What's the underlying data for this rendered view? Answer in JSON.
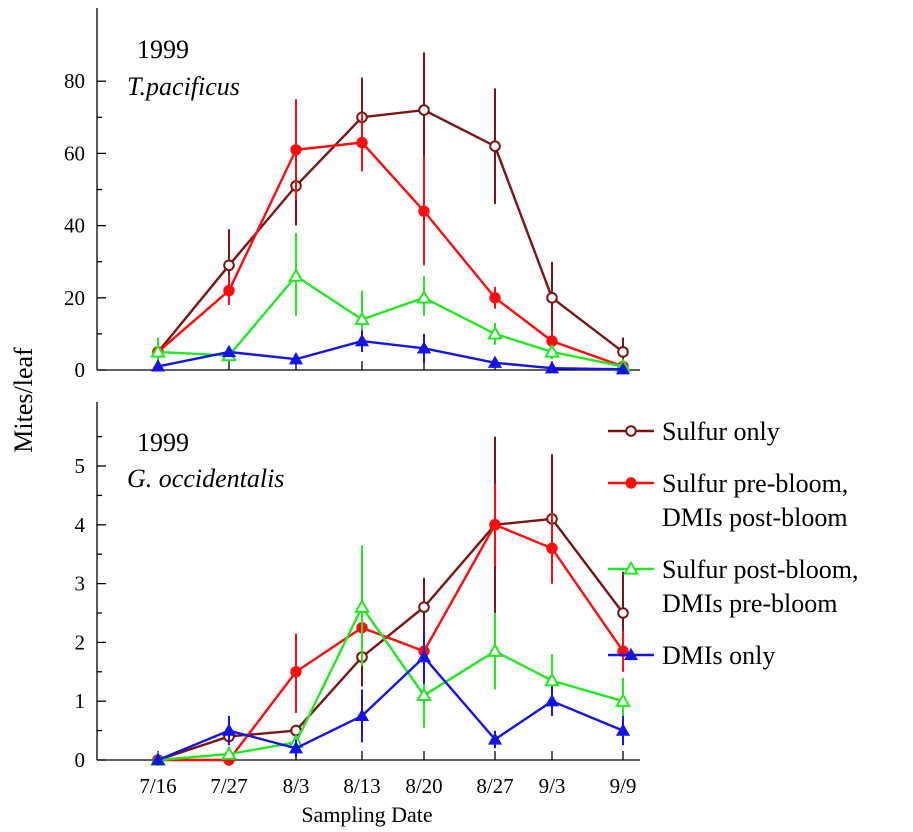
{
  "y_axis_label": "Mites/leaf",
  "x_axis_label": "Sampling Date",
  "legend": [
    {
      "label_lines": [
        "Sulfur only"
      ],
      "color": "#7a1512",
      "marker": "open-circle"
    },
    {
      "label_lines": [
        "Sulfur pre-bloom,",
        "DMIs post-bloom"
      ],
      "color": "#ff0d0d",
      "marker": "filled-circle"
    },
    {
      "label_lines": [
        "Sulfur post-bloom,",
        "DMIs pre-bloom"
      ],
      "color": "#22e822",
      "marker": "open-triangle"
    },
    {
      "label_lines": [
        "DMIs only"
      ],
      "color": "#1414e6",
      "marker": "filled-triangle"
    }
  ],
  "chart_data": [
    {
      "type": "line",
      "title": "1999",
      "subtitle": "T.pacificus",
      "xlabel": "",
      "ylabel": "Mites/leaf",
      "ylim": [
        0,
        90
      ],
      "yticks": [
        0,
        20,
        40,
        60,
        80
      ],
      "x": [
        "7/16",
        "7/27",
        "8/3",
        "8/13",
        "8/20",
        "8/27",
        "9/3",
        "9/9"
      ],
      "series": [
        {
          "name": "Sulfur only",
          "color": "#7a1512",
          "marker": "open-circle",
          "values": [
            5,
            29,
            51,
            70,
            72,
            62,
            20,
            5
          ],
          "err_low": [
            1,
            19,
            40,
            60,
            45,
            46,
            8,
            2
          ],
          "err_high": [
            7,
            39,
            62,
            81,
            88,
            78,
            30,
            9
          ]
        },
        {
          "name": "Sulfur pre-bloom, DMIs post-bloom",
          "color": "#ff0d0d",
          "marker": "filled-circle",
          "values": [
            5,
            22,
            61,
            63,
            44,
            20,
            8,
            1
          ],
          "err_low": [
            3,
            18,
            47,
            55,
            29,
            17,
            5,
            0
          ],
          "err_high": [
            7,
            26,
            75,
            71,
            59,
            23,
            11,
            2
          ]
        },
        {
          "name": "Sulfur post-bloom, DMIs pre-bloom",
          "color": "#22e822",
          "marker": "open-triangle",
          "values": [
            5,
            4,
            26,
            14,
            20,
            10,
            5,
            1
          ],
          "err_low": [
            2,
            3,
            15,
            7,
            15,
            7,
            3,
            0
          ],
          "err_high": [
            9,
            5,
            38,
            22,
            26,
            13,
            7,
            2
          ]
        },
        {
          "name": "DMIs only",
          "color": "#1414e6",
          "marker": "filled-triangle",
          "values": [
            1,
            5,
            3,
            8,
            6,
            2,
            0.5,
            0.2
          ],
          "err_low": [
            0,
            4,
            2,
            5,
            2,
            1,
            0,
            0
          ],
          "err_high": [
            2,
            6,
            4,
            11,
            10,
            3,
            1,
            0.5
          ]
        }
      ]
    },
    {
      "type": "line",
      "title": "1999",
      "subtitle": "G. occidentalis",
      "xlabel": "Sampling Date",
      "ylabel": "Mites/leaf",
      "ylim": [
        0,
        6
      ],
      "yticks": [
        0,
        1,
        2,
        3,
        4,
        5
      ],
      "x": [
        "7/16",
        "7/27",
        "8/3",
        "8/13",
        "8/20",
        "8/27",
        "9/3",
        "9/9"
      ],
      "series": [
        {
          "name": "Sulfur only",
          "color": "#7a1512",
          "marker": "open-circle",
          "values": [
            0,
            0.4,
            0.5,
            1.75,
            2.6,
            4.0,
            4.1,
            2.5
          ],
          "err_low": [
            0,
            0.3,
            0.4,
            1.25,
            2.1,
            2.5,
            3.0,
            1.8
          ],
          "err_high": [
            0.05,
            0.5,
            0.6,
            2.25,
            3.1,
            5.5,
            5.2,
            3.2
          ]
        },
        {
          "name": "Sulfur pre-bloom, DMIs post-bloom",
          "color": "#ff0d0d",
          "marker": "filled-circle",
          "values": [
            0,
            0,
            1.5,
            2.25,
            1.85,
            4.0,
            3.6,
            1.85
          ],
          "err_low": [
            0,
            0,
            0.8,
            2.1,
            1.7,
            3.3,
            3.0,
            1.5
          ],
          "err_high": [
            0.05,
            0.05,
            2.15,
            2.4,
            2.0,
            4.7,
            4.2,
            2.2
          ]
        },
        {
          "name": "Sulfur post-bloom, DMIs pre-bloom",
          "color": "#22e822",
          "marker": "open-triangle",
          "values": [
            0,
            0.1,
            0.3,
            2.6,
            1.1,
            1.85,
            1.35,
            1.0
          ],
          "err_low": [
            0,
            0.05,
            0.2,
            1.6,
            0.55,
            1.2,
            0.9,
            0.55
          ],
          "err_high": [
            0.05,
            0.15,
            0.4,
            3.65,
            1.65,
            2.5,
            1.8,
            1.4
          ]
        },
        {
          "name": "DMIs only",
          "color": "#1414e6",
          "marker": "filled-triangle",
          "values": [
            0,
            0.5,
            0.2,
            0.75,
            1.75,
            0.35,
            1.0,
            0.5
          ],
          "err_low": [
            0,
            0.25,
            0.05,
            0.3,
            1.3,
            0.2,
            0.75,
            0.25
          ],
          "err_high": [
            0.05,
            0.75,
            0.35,
            1.2,
            2.2,
            0.5,
            1.25,
            0.75
          ]
        }
      ]
    }
  ]
}
